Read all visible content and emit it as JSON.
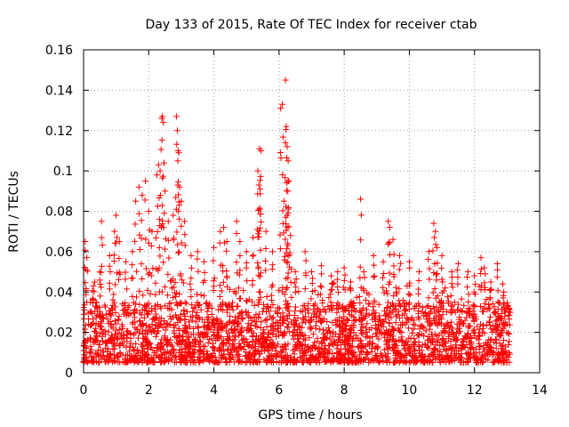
{
  "chart_data": {
    "type": "scatter",
    "title": "Day 133 of 2015, Rate Of TEC Index for receiver ctab",
    "xlabel": "GPS time / hours",
    "ylabel": "ROTI / TECUs",
    "xlim": [
      0,
      14
    ],
    "ylim": [
      0,
      0.16
    ],
    "xticks": [
      0,
      2,
      4,
      6,
      8,
      10,
      12,
      14
    ],
    "xtick_labels": [
      "0",
      "2",
      "4",
      "6",
      "8",
      "10",
      "12",
      "14"
    ],
    "yticks": [
      0,
      0.02,
      0.04,
      0.06,
      0.08,
      0.1,
      0.12,
      0.14,
      0.16
    ],
    "ytick_labels": [
      "0",
      "0.02",
      "0.04",
      "0.06",
      "0.08",
      "0.1",
      "0.12",
      "0.14",
      "0.16"
    ],
    "grid": true,
    "marker": "+",
    "color": "#ff0000",
    "time_range": [
      0,
      13.1
    ],
    "baseline_range": [
      0.005,
      0.035
    ],
    "series": [
      {
        "name": "ROTI",
        "points": [
          [
            0.05,
            0.065
          ],
          [
            0.1,
            0.057
          ],
          [
            0.3,
            0.043
          ],
          [
            0.5,
            0.05
          ],
          [
            0.55,
            0.075
          ],
          [
            0.8,
            0.058
          ],
          [
            0.95,
            0.07
          ],
          [
            1.0,
            0.078
          ],
          [
            1.1,
            0.065
          ],
          [
            1.3,
            0.055
          ],
          [
            1.5,
            0.06
          ],
          [
            1.6,
            0.085
          ],
          [
            1.7,
            0.092
          ],
          [
            1.8,
            0.088
          ],
          [
            1.9,
            0.095
          ],
          [
            2.0,
            0.08
          ],
          [
            2.1,
            0.07
          ],
          [
            2.25,
            0.098
          ],
          [
            2.3,
            0.103
          ],
          [
            2.35,
            0.1
          ],
          [
            2.4,
            0.126
          ],
          [
            2.42,
            0.127
          ],
          [
            2.45,
            0.124
          ],
          [
            2.5,
            0.09
          ],
          [
            2.6,
            0.075
          ],
          [
            2.75,
            0.078
          ],
          [
            2.85,
            0.127
          ],
          [
            2.88,
            0.12
          ],
          [
            2.9,
            0.11
          ],
          [
            2.92,
            0.109
          ],
          [
            2.95,
            0.092
          ],
          [
            3.0,
            0.085
          ],
          [
            3.1,
            0.075
          ],
          [
            3.3,
            0.058
          ],
          [
            3.5,
            0.06
          ],
          [
            3.7,
            0.055
          ],
          [
            4.0,
            0.062
          ],
          [
            4.2,
            0.07
          ],
          [
            4.3,
            0.072
          ],
          [
            4.4,
            0.065
          ],
          [
            4.7,
            0.075
          ],
          [
            4.8,
            0.065
          ],
          [
            5.0,
            0.06
          ],
          [
            5.2,
            0.067
          ],
          [
            5.35,
            0.1
          ],
          [
            5.4,
            0.111
          ],
          [
            5.45,
            0.11
          ],
          [
            5.38,
            0.093
          ],
          [
            5.42,
            0.091
          ],
          [
            5.4,
            0.081
          ],
          [
            5.6,
            0.07
          ],
          [
            5.8,
            0.06
          ],
          [
            6.05,
            0.131
          ],
          [
            6.1,
            0.133
          ],
          [
            6.2,
            0.145
          ],
          [
            6.22,
            0.122
          ],
          [
            6.25,
            0.112
          ],
          [
            6.28,
            0.105
          ],
          [
            6.3,
            0.095
          ],
          [
            6.27,
            0.09
          ],
          [
            6.15,
            0.085
          ],
          [
            6.2,
            0.077
          ],
          [
            6.25,
            0.072
          ],
          [
            6.35,
            0.068
          ],
          [
            6.5,
            0.05
          ],
          [
            6.8,
            0.06
          ],
          [
            7.0,
            0.05
          ],
          [
            7.3,
            0.053
          ],
          [
            7.6,
            0.048
          ],
          [
            7.8,
            0.05
          ],
          [
            8.0,
            0.052
          ],
          [
            8.2,
            0.045
          ],
          [
            8.5,
            0.086
          ],
          [
            8.6,
            0.05
          ],
          [
            8.9,
            0.058
          ],
          [
            9.2,
            0.055
          ],
          [
            9.35,
            0.075
          ],
          [
            9.4,
            0.072
          ],
          [
            9.5,
            0.066
          ],
          [
            9.7,
            0.058
          ],
          [
            10.0,
            0.055
          ],
          [
            10.3,
            0.05
          ],
          [
            10.6,
            0.06
          ],
          [
            10.75,
            0.074
          ],
          [
            10.8,
            0.07
          ],
          [
            10.85,
            0.062
          ],
          [
            11.0,
            0.058
          ],
          [
            11.3,
            0.05
          ],
          [
            11.5,
            0.054
          ],
          [
            11.8,
            0.05
          ],
          [
            12.0,
            0.048
          ],
          [
            12.2,
            0.057
          ],
          [
            12.3,
            0.052
          ],
          [
            12.5,
            0.045
          ],
          [
            12.7,
            0.054
          ],
          [
            12.9,
            0.04
          ],
          [
            13.05,
            0.032
          ]
        ]
      }
    ]
  }
}
